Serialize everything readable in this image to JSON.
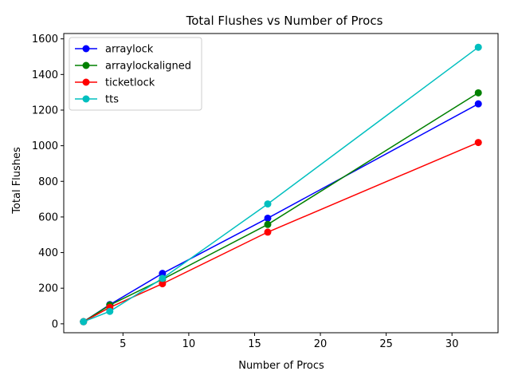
{
  "chart_data": {
    "type": "line",
    "title": "Total Flushes vs Number of Procs",
    "xlabel": "Number of Procs",
    "ylabel": "Total Flushes",
    "x": [
      2,
      4,
      8,
      16,
      32
    ],
    "xlim": [
      0.5,
      33.5
    ],
    "ylim": [
      -50,
      1630
    ],
    "xticks": [
      5,
      10,
      15,
      20,
      25,
      30
    ],
    "yticks": [
      0,
      200,
      400,
      600,
      800,
      1000,
      1200,
      1400,
      1600
    ],
    "grid": false,
    "legend_position": "top-left",
    "series": [
      {
        "name": "arraylock",
        "color": "#0000ff",
        "values": [
          12,
          108,
          283,
          593,
          1235
        ]
      },
      {
        "name": "arraylockaligned",
        "color": "#008000",
        "values": [
          12,
          105,
          250,
          558,
          1297
        ]
      },
      {
        "name": "ticketlock",
        "color": "#ff0000",
        "values": [
          12,
          92,
          225,
          515,
          1018
        ]
      },
      {
        "name": "tts",
        "color": "#00bfbf",
        "values": [
          12,
          70,
          255,
          673,
          1553
        ]
      }
    ]
  }
}
